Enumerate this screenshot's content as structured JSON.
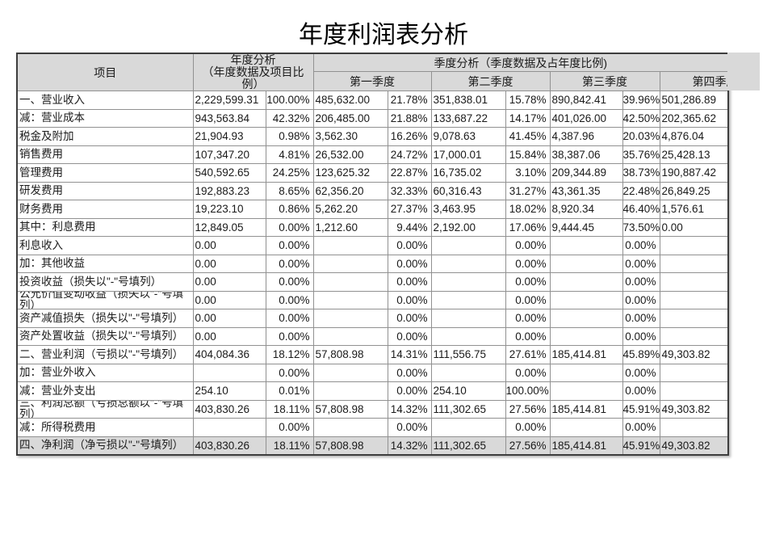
{
  "title": "年度利润表分析",
  "colors": {
    "header_bg": "#d9d9d9",
    "highlight_bg": "#d9d9d9",
    "outer_border": "#3d3d3d",
    "inner_border": "#919191",
    "text": "#1a1a1a"
  },
  "table": {
    "header": {
      "item": "项目",
      "annual_line1": "年度分析",
      "annual_line2": "（年度数据及项目比例）",
      "quarterly": "季度分析（季度数据及占年度比例)",
      "quarters": [
        "第一季度",
        "第二季度",
        "第三季度",
        "第四季度"
      ]
    },
    "columns": [
      "项目",
      "年度数据",
      "年度比例",
      "第一季度数据",
      "第一季度比例",
      "第二季度数据",
      "第二季度比例",
      "第三季度数据",
      "第三季度比例",
      "第四季度数据"
    ],
    "rows": [
      {
        "highlight": false,
        "cells": [
          "一、营业收入",
          "2,229,599.31",
          "100.00%",
          "485,632.00",
          "21.78%",
          "351,838.01",
          "15.78%",
          "890,842.41",
          "39.96%",
          "501,286.89"
        ]
      },
      {
        "highlight": false,
        "cells": [
          "减：营业成本",
          "943,563.84",
          "42.32%",
          "206,485.00",
          "21.88%",
          "133,687.22",
          "14.17%",
          "401,026.00",
          "42.50%",
          "202,365.62"
        ]
      },
      {
        "highlight": false,
        "cells": [
          "税金及附加",
          "21,904.93",
          "0.98%",
          "3,562.30",
          "16.26%",
          "9,078.63",
          "41.45%",
          "4,387.96",
          "20.03%",
          "4,876.04"
        ]
      },
      {
        "highlight": false,
        "cells": [
          "销售费用",
          "107,347.20",
          "4.81%",
          "26,532.00",
          "24.72%",
          "17,000.01",
          "15.84%",
          "38,387.06",
          "35.76%",
          "25,428.13"
        ]
      },
      {
        "highlight": false,
        "cells": [
          "管理费用",
          "540,592.65",
          "24.25%",
          "123,625.32",
          "22.87%",
          "16,735.02",
          "3.10%",
          "209,344.89",
          "38.73%",
          "190,887.42"
        ]
      },
      {
        "highlight": false,
        "cells": [
          "研发费用",
          "192,883.23",
          "8.65%",
          "62,356.20",
          "32.33%",
          "60,316.43",
          "31.27%",
          "43,361.35",
          "22.48%",
          "26,849.25"
        ]
      },
      {
        "highlight": false,
        "cells": [
          "财务费用",
          "19,223.10",
          "0.86%",
          "5,262.20",
          "27.37%",
          "3,463.95",
          "18.02%",
          "8,920.34",
          "46.40%",
          "1,576.61"
        ]
      },
      {
        "highlight": false,
        "cells": [
          "其中：利息费用",
          "12,849.05",
          "0.00%",
          "1,212.60",
          "9.44%",
          "2,192.00",
          "17.06%",
          "9,444.45",
          "73.50%",
          "0.00"
        ]
      },
      {
        "highlight": false,
        "cells": [
          "利息收入",
          "0.00",
          "0.00%",
          "",
          "0.00%",
          "",
          "0.00%",
          "",
          "0.00%",
          ""
        ]
      },
      {
        "highlight": false,
        "cells": [
          "加：其他收益",
          "0.00",
          "0.00%",
          "",
          "0.00%",
          "",
          "0.00%",
          "",
          "0.00%",
          ""
        ]
      },
      {
        "highlight": false,
        "cells": [
          "投资收益（损失以\"-\"号填列）",
          "0.00",
          "0.00%",
          "",
          "0.00%",
          "",
          "0.00%",
          "",
          "0.00%",
          ""
        ]
      },
      {
        "highlight": false,
        "cells": [
          "公允价值变动收益（损失以\"-\"号填列）",
          "0.00",
          "0.00%",
          "",
          "0.00%",
          "",
          "0.00%",
          "",
          "0.00%",
          ""
        ]
      },
      {
        "highlight": false,
        "cells": [
          "资产减值损失（损失以\"-\"号填列）",
          "0.00",
          "0.00%",
          "",
          "0.00%",
          "",
          "0.00%",
          "",
          "0.00%",
          ""
        ]
      },
      {
        "highlight": false,
        "cells": [
          "资产处置收益（损失以\"-\"号填列）",
          "0.00",
          "0.00%",
          "",
          "0.00%",
          "",
          "0.00%",
          "",
          "0.00%",
          ""
        ]
      },
      {
        "highlight": false,
        "cells": [
          "二、营业利润（亏损以\"-\"号填列）",
          "404,084.36",
          "18.12%",
          "57,808.98",
          "14.31%",
          "111,556.75",
          "27.61%",
          "185,414.81",
          "45.89%",
          "49,303.82"
        ]
      },
      {
        "highlight": false,
        "cells": [
          "加：营业外收入",
          "",
          "0.00%",
          "",
          "0.00%",
          "",
          "0.00%",
          "",
          "0.00%",
          ""
        ]
      },
      {
        "highlight": false,
        "cells": [
          "减：营业外支出",
          "254.10",
          "0.01%",
          "",
          "0.00%",
          "254.10",
          "100.00%",
          "",
          "0.00%",
          ""
        ]
      },
      {
        "highlight": false,
        "cells": [
          "三、利润总额（亏损总额以\"-\"号填列）",
          "403,830.26",
          "18.11%",
          "57,808.98",
          "14.32%",
          "111,302.65",
          "27.56%",
          "185,414.81",
          "45.91%",
          "49,303.82"
        ]
      },
      {
        "highlight": false,
        "cells": [
          "减：所得税费用",
          "",
          "0.00%",
          "",
          "0.00%",
          "",
          "0.00%",
          "",
          "0.00%",
          ""
        ]
      },
      {
        "highlight": true,
        "cells": [
          "四、净利润（净亏损以\"-\"号填列）",
          "403,830.26",
          "18.11%",
          "57,808.98",
          "14.32%",
          "111,302.65",
          "27.56%",
          "185,414.81",
          "45.91%",
          "49,303.82"
        ]
      }
    ]
  }
}
